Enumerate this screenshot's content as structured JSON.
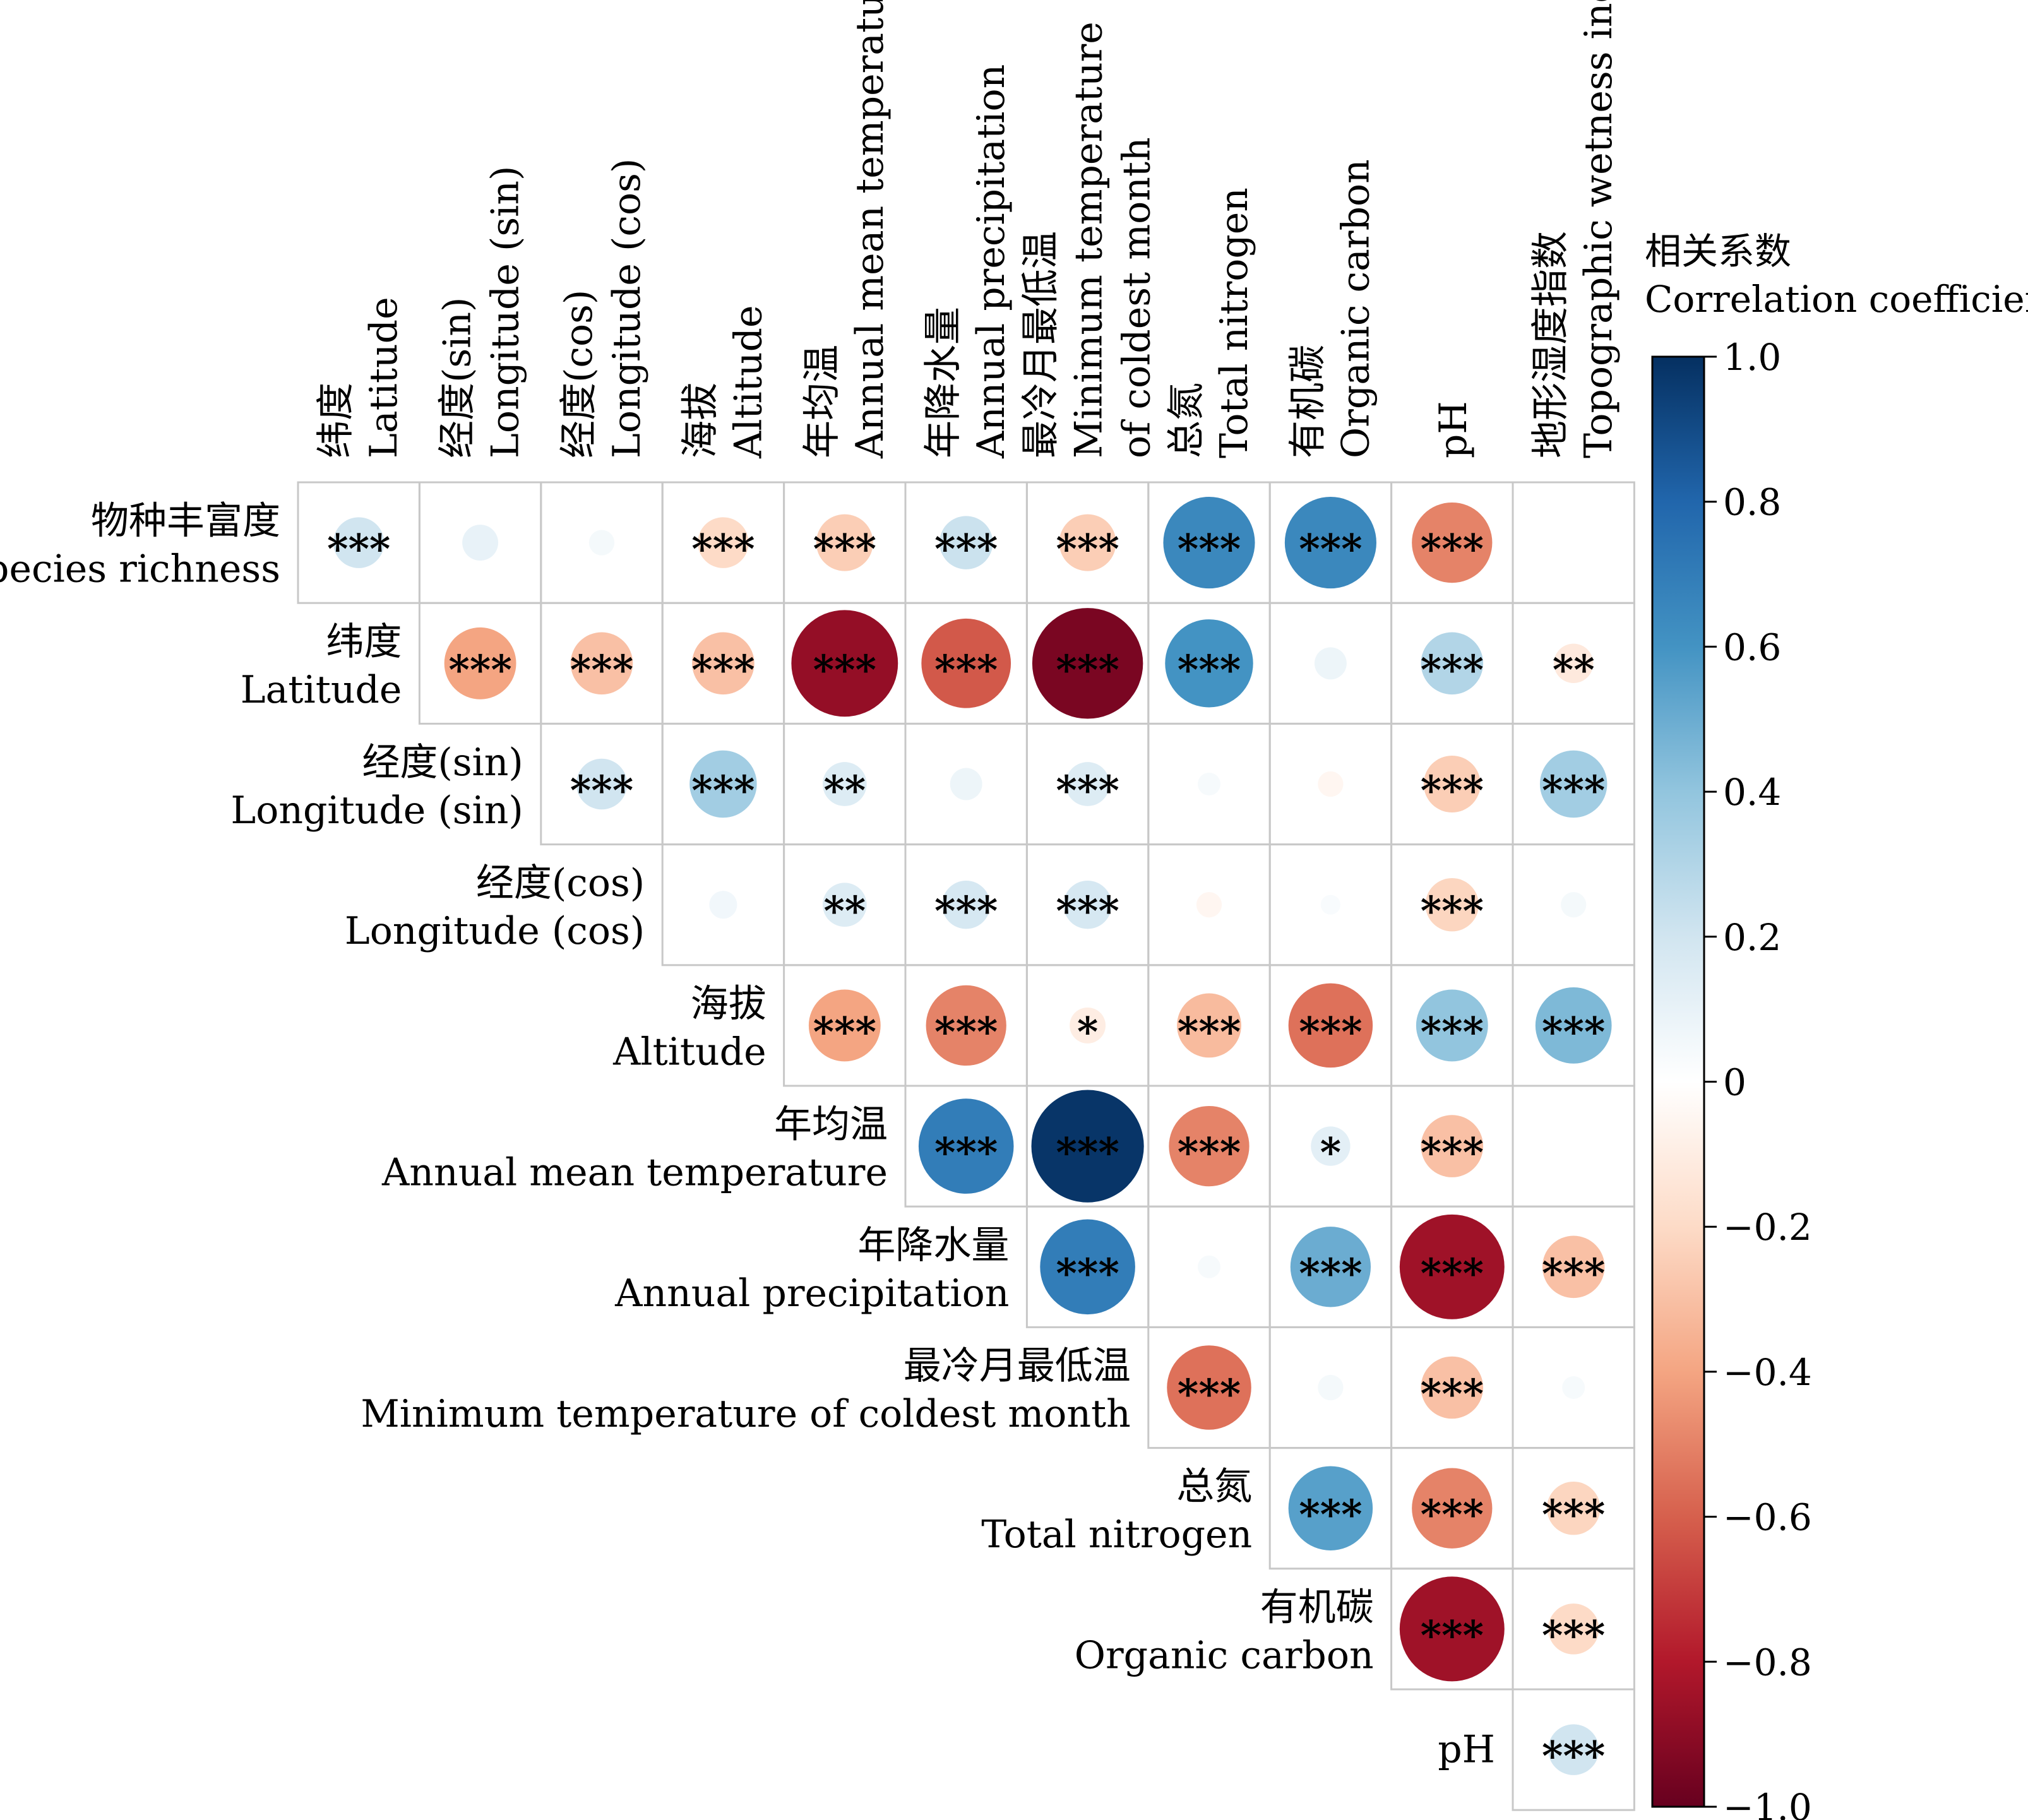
{
  "chart_data": {
    "type": "heatmap",
    "variables": [
      {
        "zh": "物种丰富度",
        "en": "Species richness"
      },
      {
        "zh": "纬度",
        "en": "Latitude"
      },
      {
        "zh": "经度(sin)",
        "en": "Longitude (sin)"
      },
      {
        "zh": "经度(cos)",
        "en": "Longitude (cos)"
      },
      {
        "zh": "海拔",
        "en": "Altitude"
      },
      {
        "zh": "年均温",
        "en": "Annual mean temperature"
      },
      {
        "zh": "年降水量",
        "en": "Annual precipitation"
      },
      {
        "zh": "最冷月最低温",
        "en": "Minimum temperature of coldest month"
      },
      {
        "zh": "总氮",
        "en": "Total nitrogen"
      },
      {
        "zh": "有机碳",
        "en": "Organic carbon"
      },
      {
        "zh": "",
        "en": "pH"
      },
      {
        "zh": "地形湿度指数",
        "en": "Topographic wetness index"
      }
    ],
    "column_labels": [
      {
        "line1": "纬度",
        "line2": "Latitude"
      },
      {
        "line1": "经度(sin)",
        "line2": "Longitude (sin)"
      },
      {
        "line1": "经度(cos)",
        "line2": "Longitude (cos)"
      },
      {
        "line1": "海拔",
        "line2": "Altitude"
      },
      {
        "line1": "年均温",
        "line2": "Annual mean temperature"
      },
      {
        "line1": "年降水量",
        "line2": "Annual precipitation"
      },
      {
        "line1": "最冷月最低温",
        "line2": "Minimum temperature",
        "line3": "of coldest month"
      },
      {
        "line1": "总氮",
        "line2": "Total nitrogen"
      },
      {
        "line1": "有机碳",
        "line2": "Organic carbon"
      },
      {
        "line1": "pH"
      },
      {
        "line1": "地形湿度指数",
        "line2": "Topographic wetness index"
      }
    ],
    "row_labels": [
      {
        "line1": "物种丰富度",
        "line2": "Species richness"
      },
      {
        "line1": "纬度",
        "line2": "Latitude"
      },
      {
        "line1": "经度(sin)",
        "line2": "Longitude (sin)"
      },
      {
        "line1": "经度(cos)",
        "line2": "Longitude (cos)"
      },
      {
        "line1": "海拔",
        "line2": "Altitude"
      },
      {
        "line1": "年均温",
        "line2": "Annual mean temperature"
      },
      {
        "line1": "年降水量",
        "line2": "Annual precipitation"
      },
      {
        "line1": "最冷月最低温",
        "line2": "Minimum temperature of coldest month"
      },
      {
        "line1": "总氮",
        "line2": "Total nitrogen"
      },
      {
        "line1": "有机碳",
        "line2": "Organic carbon"
      },
      {
        "line1": "pH"
      }
    ],
    "cells": [
      {
        "row": 0,
        "col": 0,
        "r": 0.2,
        "sig": "***"
      },
      {
        "row": 0,
        "col": 1,
        "r": 0.1,
        "sig": ""
      },
      {
        "row": 0,
        "col": 2,
        "r": 0.05,
        "sig": ""
      },
      {
        "row": 0,
        "col": 3,
        "r": -0.2,
        "sig": "***"
      },
      {
        "row": 0,
        "col": 4,
        "r": -0.25,
        "sig": "***"
      },
      {
        "row": 0,
        "col": 5,
        "r": 0.22,
        "sig": "***"
      },
      {
        "row": 0,
        "col": 6,
        "r": -0.25,
        "sig": "***"
      },
      {
        "row": 0,
        "col": 7,
        "r": 0.65,
        "sig": "***"
      },
      {
        "row": 0,
        "col": 8,
        "r": 0.65,
        "sig": "***"
      },
      {
        "row": 0,
        "col": 9,
        "r": -0.5,
        "sig": "***"
      },
      {
        "row": 0,
        "col": 10,
        "r": 0.0,
        "sig": ""
      },
      {
        "row": 1,
        "col": 1,
        "r": -0.4,
        "sig": "***"
      },
      {
        "row": 1,
        "col": 2,
        "r": -0.3,
        "sig": "***"
      },
      {
        "row": 1,
        "col": 3,
        "r": -0.3,
        "sig": "***"
      },
      {
        "row": 1,
        "col": 4,
        "r": -0.88,
        "sig": "***"
      },
      {
        "row": 1,
        "col": 5,
        "r": -0.62,
        "sig": "***"
      },
      {
        "row": 1,
        "col": 6,
        "r": -0.95,
        "sig": "***"
      },
      {
        "row": 1,
        "col": 7,
        "r": 0.6,
        "sig": "***"
      },
      {
        "row": 1,
        "col": 8,
        "r": 0.08,
        "sig": ""
      },
      {
        "row": 1,
        "col": 9,
        "r": 0.3,
        "sig": "***"
      },
      {
        "row": 1,
        "col": 10,
        "r": -0.12,
        "sig": "**"
      },
      {
        "row": 2,
        "col": 2,
        "r": 0.2,
        "sig": "***"
      },
      {
        "row": 2,
        "col": 3,
        "r": 0.35,
        "sig": "***"
      },
      {
        "row": 2,
        "col": 4,
        "r": 0.15,
        "sig": "**"
      },
      {
        "row": 2,
        "col": 5,
        "r": 0.08,
        "sig": ""
      },
      {
        "row": 2,
        "col": 6,
        "r": 0.15,
        "sig": "***"
      },
      {
        "row": 2,
        "col": 7,
        "r": 0.04,
        "sig": ""
      },
      {
        "row": 2,
        "col": 8,
        "r": -0.05,
        "sig": ""
      },
      {
        "row": 2,
        "col": 9,
        "r": -0.25,
        "sig": "***"
      },
      {
        "row": 2,
        "col": 10,
        "r": 0.35,
        "sig": "***"
      },
      {
        "row": 3,
        "col": 3,
        "r": 0.06,
        "sig": ""
      },
      {
        "row": 3,
        "col": 4,
        "r": 0.15,
        "sig": "**"
      },
      {
        "row": 3,
        "col": 5,
        "r": 0.18,
        "sig": "***"
      },
      {
        "row": 3,
        "col": 6,
        "r": 0.18,
        "sig": "***"
      },
      {
        "row": 3,
        "col": 7,
        "r": -0.05,
        "sig": ""
      },
      {
        "row": 3,
        "col": 8,
        "r": 0.03,
        "sig": ""
      },
      {
        "row": 3,
        "col": 9,
        "r": -0.22,
        "sig": "***"
      },
      {
        "row": 3,
        "col": 10,
        "r": 0.05,
        "sig": ""
      },
      {
        "row": 4,
        "col": 4,
        "r": -0.4,
        "sig": "***"
      },
      {
        "row": 4,
        "col": 5,
        "r": -0.5,
        "sig": "***"
      },
      {
        "row": 4,
        "col": 6,
        "r": -0.1,
        "sig": "*"
      },
      {
        "row": 4,
        "col": 7,
        "r": -0.32,
        "sig": "***"
      },
      {
        "row": 4,
        "col": 8,
        "r": -0.55,
        "sig": "***"
      },
      {
        "row": 4,
        "col": 9,
        "r": 0.4,
        "sig": "***"
      },
      {
        "row": 4,
        "col": 10,
        "r": 0.45,
        "sig": "***"
      },
      {
        "row": 5,
        "col": 5,
        "r": 0.7,
        "sig": "***"
      },
      {
        "row": 5,
        "col": 6,
        "r": 0.98,
        "sig": "***"
      },
      {
        "row": 5,
        "col": 7,
        "r": -0.5,
        "sig": "***"
      },
      {
        "row": 5,
        "col": 8,
        "r": 0.12,
        "sig": "*"
      },
      {
        "row": 5,
        "col": 9,
        "r": -0.3,
        "sig": "***"
      },
      {
        "row": 5,
        "col": 10,
        "r": 0.0,
        "sig": ""
      },
      {
        "row": 6,
        "col": 6,
        "r": 0.7,
        "sig": "***"
      },
      {
        "row": 6,
        "col": 7,
        "r": 0.04,
        "sig": ""
      },
      {
        "row": 6,
        "col": 8,
        "r": 0.5,
        "sig": "***"
      },
      {
        "row": 6,
        "col": 9,
        "r": -0.85,
        "sig": "***"
      },
      {
        "row": 6,
        "col": 10,
        "r": -0.3,
        "sig": "***"
      },
      {
        "row": 7,
        "col": 7,
        "r": -0.55,
        "sig": "***"
      },
      {
        "row": 7,
        "col": 8,
        "r": 0.05,
        "sig": ""
      },
      {
        "row": 7,
        "col": 9,
        "r": -0.3,
        "sig": "***"
      },
      {
        "row": 7,
        "col": 10,
        "r": 0.04,
        "sig": ""
      },
      {
        "row": 8,
        "col": 8,
        "r": 0.55,
        "sig": "***"
      },
      {
        "row": 8,
        "col": 9,
        "r": -0.5,
        "sig": "***"
      },
      {
        "row": 8,
        "col": 10,
        "r": -0.22,
        "sig": "***"
      },
      {
        "row": 9,
        "col": 9,
        "r": -0.85,
        "sig": "***"
      },
      {
        "row": 9,
        "col": 10,
        "r": -0.2,
        "sig": "***"
      },
      {
        "row": 10,
        "col": 10,
        "r": 0.2,
        "sig": "***"
      }
    ],
    "colorbar": {
      "title_zh": "相关系数",
      "title_en": "Correlation coefficient",
      "range": [
        -1.0,
        1.0
      ],
      "ticks": [
        "1.0",
        "0.8",
        "0.6",
        "0.4",
        "0.2",
        "0",
        "−0.2",
        "−0.4",
        "−0.6",
        "−0.8",
        "−1.0"
      ],
      "colors": [
        "#67001f",
        "#b2182b",
        "#d6604d",
        "#f4a582",
        "#fddbc7",
        "#ffffff",
        "#d1e5f0",
        "#92c5de",
        "#4393c3",
        "#2166ac",
        "#053061"
      ]
    }
  }
}
